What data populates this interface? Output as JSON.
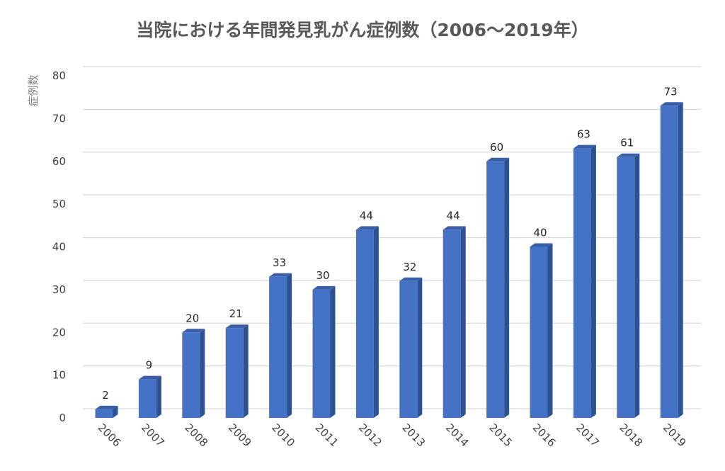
{
  "chart_data": {
    "type": "bar",
    "title": "当院における年間発見乳がん症例数（2006～2019年）",
    "xlabel": "",
    "ylabel": "症例数",
    "categories": [
      "2006",
      "2007",
      "2008",
      "2009",
      "2010",
      "2011",
      "2012",
      "2013",
      "2014",
      "2015",
      "2016",
      "2017",
      "2018",
      "2019"
    ],
    "values": [
      2,
      9,
      20,
      21,
      33,
      30,
      44,
      32,
      44,
      60,
      40,
      63,
      61,
      73
    ],
    "data_labels": [
      "2",
      "9",
      "20",
      "21",
      "33",
      "30",
      "44",
      "32",
      "44",
      "60",
      "40",
      "63",
      "61",
      "73"
    ],
    "y_ticks": [
      "0",
      "10",
      "20",
      "30",
      "40",
      "50",
      "60",
      "70",
      "80"
    ],
    "ylim": [
      0,
      80
    ],
    "grid": true,
    "legend": "none",
    "bar_style": "3d-column",
    "colors": {
      "bar_front": "#4472c4",
      "bar_side": "#2f528f",
      "bar_top": "#3a5fa8",
      "grid": "#d9d9d9"
    }
  }
}
